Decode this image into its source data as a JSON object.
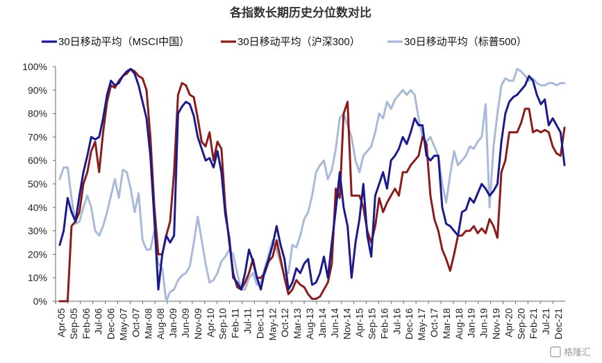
{
  "chart_data": {
    "type": "line",
    "title": "各指数长期历史分位数对比",
    "xlabel": "",
    "ylabel": "",
    "ylim": [
      0,
      100
    ],
    "y_ticks": [
      "0%",
      "10%",
      "20%",
      "30%",
      "40%",
      "50%",
      "60%",
      "70%",
      "80%",
      "90%",
      "100%"
    ],
    "x_ticks": [
      "Apr-05",
      "Sep-05",
      "Feb-06",
      "Jul-06",
      "Dec-06",
      "May-07",
      "Oct-07",
      "Mar-08",
      "Aug-08",
      "Jan-09",
      "Jun-09",
      "Nov-09",
      "Apr-10",
      "Sep-10",
      "Feb-11",
      "Jul-11",
      "Dec-11",
      "May-12",
      "Oct-12",
      "Mar-13",
      "Aug-13",
      "Jan-14",
      "Jun-14",
      "Nov-14",
      "Apr-15",
      "Sep-15",
      "Feb-16",
      "Jul-16",
      "Dec-16",
      "May-17",
      "Oct-17",
      "Mar-18",
      "Aug-18",
      "Jan-19",
      "Jun-19",
      "Nov-19",
      "Apr-20",
      "Sep-20",
      "Feb-21",
      "Jul-21",
      "Dec-21"
    ],
    "grid": false,
    "legend_position": "top",
    "series": [
      {
        "name": "30日移动平均（MSCI中国）",
        "color": "#1a1a8c",
        "values": [
          24,
          30,
          44,
          38,
          34,
          45,
          55,
          62,
          70,
          69,
          70,
          78,
          88,
          94,
          92,
          93,
          96,
          98,
          99,
          97,
          92,
          85,
          78,
          62,
          35,
          5,
          20,
          28,
          25,
          28,
          80,
          83,
          85,
          84,
          79,
          70,
          65,
          60,
          61,
          57,
          64,
          55,
          37,
          27,
          10,
          8,
          5,
          12,
          22,
          17,
          10,
          5,
          13,
          18,
          24,
          32,
          24,
          18,
          5,
          8,
          14,
          12,
          16,
          18,
          7,
          8,
          12,
          19,
          10,
          25,
          39,
          55,
          40,
          32,
          10,
          25,
          35,
          50,
          28,
          19,
          45,
          50,
          55,
          48,
          60,
          62,
          65,
          70,
          67,
          72,
          78,
          75,
          75,
          62,
          60,
          62,
          62,
          40,
          33,
          32,
          30,
          28,
          38,
          39,
          44,
          42,
          46,
          50,
          48,
          45,
          47,
          50,
          68,
          80,
          85,
          87,
          88,
          90,
          92,
          96,
          94,
          88,
          84,
          86,
          75,
          78,
          75,
          72,
          58
        ]
      },
      {
        "name": "30日移动平均（沪深300）",
        "color": "#8b1a1a",
        "values": [
          0,
          0,
          0,
          32,
          34,
          38,
          50,
          55,
          64,
          68,
          55,
          72,
          85,
          92,
          91,
          94,
          96,
          97,
          99,
          98,
          96,
          95,
          90,
          70,
          40,
          20,
          20,
          28,
          34,
          55,
          88,
          93,
          92,
          88,
          87,
          78,
          68,
          66,
          72,
          60,
          68,
          65,
          40,
          25,
          12,
          6,
          5,
          8,
          12,
          18,
          10,
          10,
          12,
          17,
          19,
          26,
          18,
          10,
          3,
          5,
          9,
          7,
          6,
          3,
          1,
          1,
          2,
          5,
          8,
          16,
          48,
          44,
          80,
          85,
          45,
          45,
          45,
          40,
          30,
          25,
          32,
          44,
          38,
          42,
          45,
          48,
          45,
          55,
          55,
          58,
          60,
          62,
          70,
          67,
          45,
          35,
          30,
          22,
          18,
          13,
          20,
          28,
          28,
          30,
          30,
          32,
          29,
          31,
          29,
          35,
          32,
          27,
          55,
          60,
          72,
          72,
          72,
          76,
          82,
          82,
          72,
          73,
          72,
          73,
          72,
          66,
          63,
          62,
          74
        ]
      },
      {
        "name": "30日移动平均（标普500）",
        "color": "#a8bad8",
        "values": [
          52,
          57,
          57,
          44,
          33,
          34,
          40,
          45,
          40,
          30,
          28,
          32,
          38,
          45,
          52,
          44,
          56,
          55,
          48,
          38,
          46,
          26,
          22,
          22,
          30,
          16,
          14,
          0,
          4,
          5,
          9,
          11,
          12,
          15,
          25,
          36,
          26,
          16,
          8,
          9,
          12,
          17,
          19,
          22,
          20,
          12,
          5,
          5,
          10,
          12,
          7,
          8,
          14,
          20,
          26,
          22,
          16,
          11,
          12,
          24,
          23,
          28,
          35,
          38,
          45,
          55,
          58,
          60,
          52,
          56,
          65,
          78,
          80,
          75,
          70,
          60,
          55,
          62,
          64,
          66,
          72,
          80,
          78,
          85,
          82,
          86,
          88,
          90,
          88,
          90,
          88,
          78,
          70,
          68,
          70,
          66,
          62,
          50,
          42,
          54,
          64,
          58,
          60,
          62,
          66,
          65,
          68,
          70,
          84,
          40,
          66,
          80,
          92,
          95,
          94,
          94,
          99,
          98,
          96,
          94,
          95,
          93,
          92,
          92,
          93,
          93,
          92,
          93,
          93
        ]
      }
    ],
    "watermark": "格隆汇"
  }
}
